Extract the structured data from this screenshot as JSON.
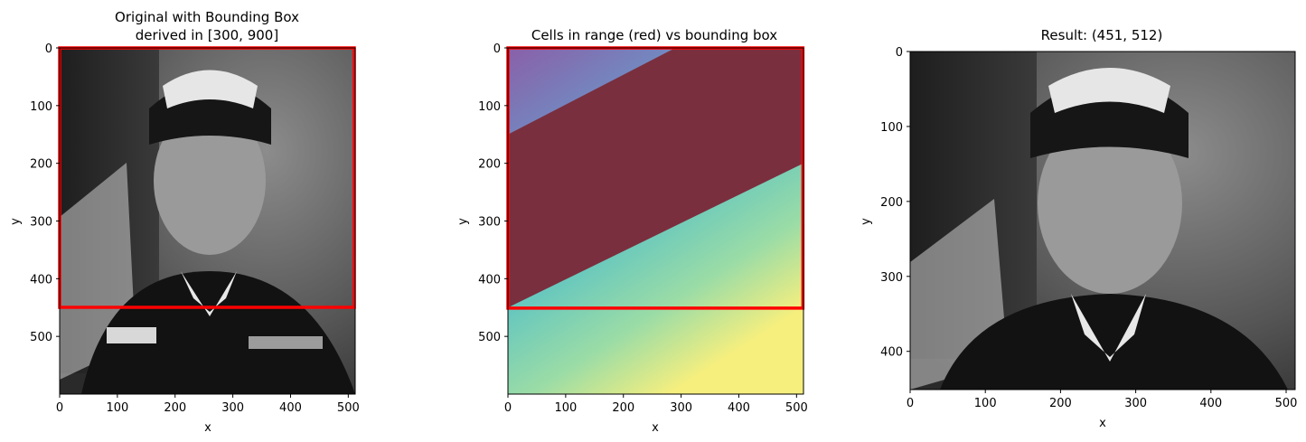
{
  "chart_data": [
    {
      "type": "image",
      "title": "Original with Bounding Box",
      "title2": "derived in [300, 900]",
      "xlabel": "x",
      "ylabel": "y",
      "xlim": [
        0,
        512
      ],
      "ylim": [
        600,
        0
      ],
      "xticks": [
        0,
        100,
        200,
        300,
        400,
        500
      ],
      "yticks": [
        0,
        100,
        200,
        300,
        400,
        500
      ],
      "image_subject": "grayscale portrait photograph",
      "bounding_box": {
        "x": [
          0,
          511
        ],
        "y": [
          0,
          451
        ],
        "color": "#ff0000"
      }
    },
    {
      "type": "heatmap",
      "title": "Cells in range (red) vs bounding box",
      "xlabel": "x",
      "ylabel": "y",
      "xlim": [
        0,
        512
      ],
      "ylim": [
        600,
        0
      ],
      "xticks": [
        0,
        100,
        200,
        300,
        400,
        500
      ],
      "yticks": [
        0,
        100,
        200,
        300,
        400,
        500
      ],
      "in_range_band": {
        "upper_edge": [
          [
            0,
            150
          ],
          [
            290,
            0
          ]
        ],
        "lower_edge": [
          [
            0,
            450
          ],
          [
            512,
            200
          ]
        ],
        "color": "#7a2f3e"
      },
      "bounding_box": {
        "x": [
          0,
          511
        ],
        "y": [
          0,
          451
        ],
        "color": "#ff0000"
      }
    },
    {
      "type": "image",
      "title": "Result: (451, 512)",
      "xlabel": "x",
      "ylabel": "y",
      "xlim": [
        0,
        512
      ],
      "ylim": [
        451,
        0
      ],
      "xticks": [
        0,
        100,
        200,
        300,
        400,
        500
      ],
      "yticks": [
        0,
        100,
        200,
        300,
        400
      ],
      "image_subject": "cropped grayscale portrait photograph"
    }
  ]
}
